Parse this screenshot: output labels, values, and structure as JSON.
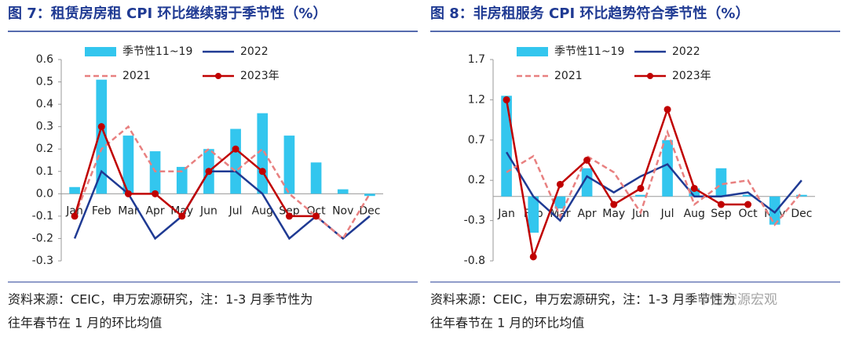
{
  "chart_data": [
    {
      "type": "bar_line",
      "title": "图 7：租赁房房租 CPI 环比继续弱于季节性（%）",
      "categories": [
        "Jan",
        "Feb",
        "Mar",
        "Apr",
        "May",
        "Jun",
        "Jul",
        "Aug",
        "Sep",
        "Oct",
        "Nov",
        "Dec"
      ],
      "ylim": [
        -0.3,
        0.6
      ],
      "yticks": [
        -0.3,
        -0.2,
        -0.1,
        {
          "value": 0,
          "label": "0.0"
        },
        0.1,
        0.2,
        0.3,
        0.4,
        0.5,
        0.6
      ],
      "series": [
        {
          "name": "季节性11~19",
          "kind": "bar",
          "color": "#33c6ee",
          "values": [
            0.03,
            0.51,
            0.26,
            0.19,
            0.12,
            0.2,
            0.29,
            0.36,
            0.26,
            0.14,
            0.02,
            -0.01
          ]
        },
        {
          "name": "2022",
          "kind": "line",
          "color": "#1f3a93",
          "values": [
            -0.2,
            0.1,
            0,
            -0.2,
            -0.1,
            0.1,
            0.1,
            0,
            -0.2,
            -0.1,
            -0.2,
            -0.1
          ]
        },
        {
          "name": "2021",
          "kind": "line",
          "dash": true,
          "color": "#e88080",
          "values": [
            -0.1,
            0.2,
            0.3,
            0.1,
            0.1,
            0.2,
            0.1,
            0.2,
            0,
            -0.1,
            -0.2,
            0
          ]
        },
        {
          "name": "2023年",
          "kind": "line",
          "markers": true,
          "color": "#c00000",
          "values": [
            -0.1,
            0.3,
            0,
            0,
            -0.1,
            0.1,
            0.2,
            0.1,
            -0.1,
            -0.1,
            null,
            null
          ]
        }
      ],
      "source": [
        "资料来源：CEIC，申万宏源研究，注：1-3 月季节性为",
        "往年春节在 1 月的环比均值"
      ]
    },
    {
      "type": "bar_line",
      "title": "图 8：非房租服务 CPI 环比趋势符合季节性（%）",
      "categories": [
        "Jan",
        "Feb",
        "Mar",
        "Apr",
        "May",
        "Jun",
        "Jul",
        "Aug",
        "Sep",
        "Oct",
        "Nov",
        "Dec"
      ],
      "ylim": [
        -0.8,
        1.7
      ],
      "yticks": [
        -0.8,
        -0.3,
        0.2,
        0.7,
        1.2,
        1.7
      ],
      "series": [
        {
          "name": "季节性11~19",
          "kind": "bar",
          "color": "#33c6ee",
          "values": [
            1.25,
            -0.45,
            -0.15,
            0.35,
            0,
            0.02,
            0.7,
            0.1,
            0.35,
            0.02,
            -0.35,
            0.02
          ]
        },
        {
          "name": "2022",
          "kind": "line",
          "color": "#1f3a93",
          "values": [
            0.55,
            0,
            -0.3,
            0.25,
            0.05,
            0.25,
            0.4,
            0,
            0,
            0.05,
            -0.2,
            0.2
          ]
        },
        {
          "name": "2021",
          "kind": "line",
          "dash": true,
          "color": "#e88080",
          "values": [
            0.3,
            0.5,
            -0.25,
            0.5,
            0.3,
            -0.2,
            0.8,
            -0.1,
            0.15,
            0.2,
            -0.35,
            0.05
          ]
        },
        {
          "name": "2023年",
          "kind": "line",
          "markers": true,
          "color": "#c00000",
          "values": [
            1.2,
            -0.75,
            0.15,
            0.45,
            -0.1,
            0.1,
            1.08,
            0.1,
            -0.1,
            -0.1,
            null,
            null
          ]
        }
      ],
      "source": [
        "资料来源：CEIC，申万宏源研究，注：1-3 月季节性为",
        "往年春节在 1 月的环比均值"
      ],
      "watermark": "申万宏源宏观"
    }
  ]
}
